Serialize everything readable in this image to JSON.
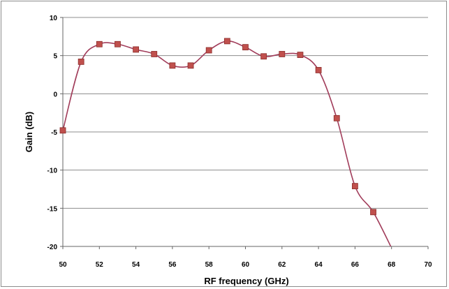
{
  "chart_data": {
    "type": "line",
    "title": "",
    "xlabel": "RF frequency (GHz)",
    "ylabel": "Gain (dB)",
    "xlim": [
      50,
      70
    ],
    "ylim": [
      -20,
      10
    ],
    "x_ticks": [
      50,
      52,
      54,
      56,
      58,
      60,
      62,
      64,
      66,
      68,
      70
    ],
    "y_ticks": [
      10,
      5,
      0,
      -5,
      -10,
      -15,
      -20
    ],
    "grid": true,
    "legend": "none",
    "colors": {
      "line": "#a13c5a",
      "marker": "#c0504d",
      "marker_edge": "#8b2d2b",
      "grid": "#8c8c8c"
    },
    "series": [
      {
        "x": [
          50,
          51,
          52,
          53,
          54,
          55,
          56,
          57,
          58,
          59,
          60,
          61,
          62,
          63,
          64,
          65,
          66,
          67,
          68
        ],
        "values": [
          -4.8,
          4.2,
          6.5,
          6.5,
          5.8,
          5.2,
          3.7,
          3.7,
          5.7,
          6.9,
          6.1,
          4.9,
          5.2,
          5.1,
          3.1,
          -3.2,
          -12.1,
          -15.5,
          -20.2
        ]
      }
    ]
  }
}
